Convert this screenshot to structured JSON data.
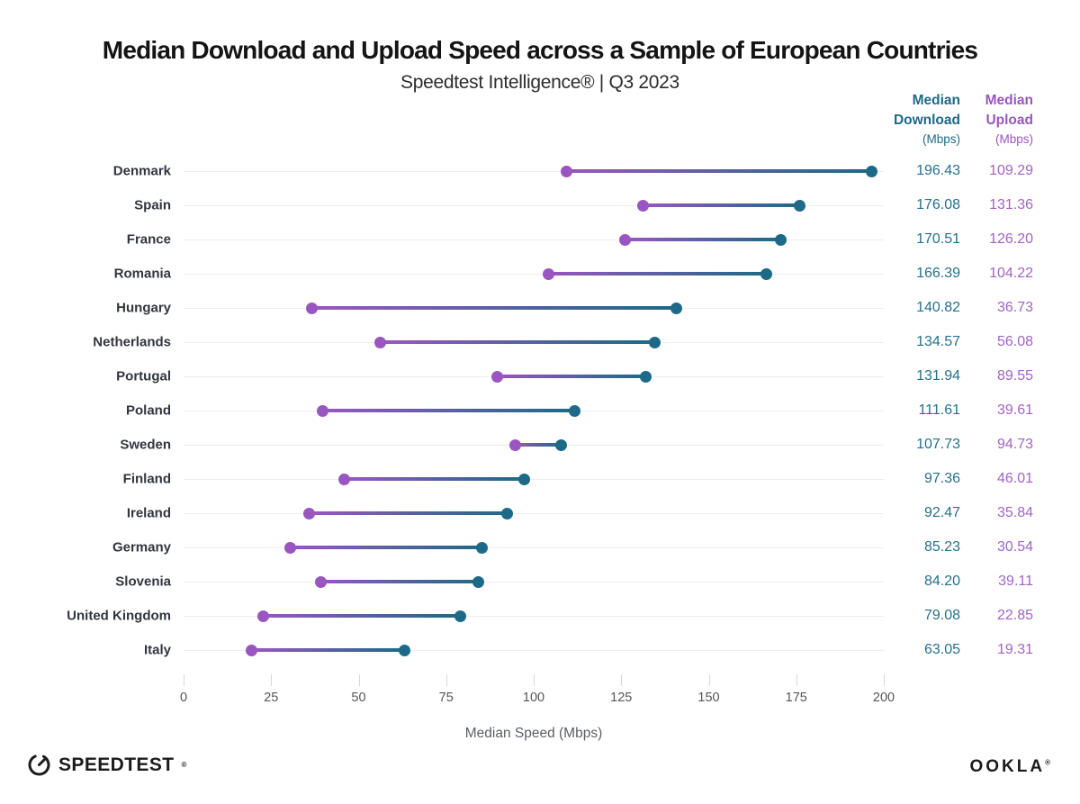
{
  "header": {
    "title": "Median Download and Upload Speed across a Sample of European Countries",
    "subtitle": "Speedtest Intelligence® | Q3 2023",
    "col_download": {
      "line1": "Median",
      "line2": "Download",
      "unit": "(Mbps)"
    },
    "col_upload": {
      "line1": "Median",
      "line2": "Upload",
      "unit": "(Mbps)"
    }
  },
  "chart_data": {
    "type": "dumbbell",
    "title": "Median Download and Upload Speed across a Sample of European Countries",
    "subtitle": "Speedtest Intelligence® | Q3 2023",
    "categories": [
      "Denmark",
      "Spain",
      "France",
      "Romania",
      "Hungary",
      "Netherlands",
      "Portugal",
      "Poland",
      "Sweden",
      "Finland",
      "Ireland",
      "Germany",
      "Slovenia",
      "United Kingdom",
      "Italy"
    ],
    "series": [
      {
        "name": "Median Download (Mbps)",
        "color": "#1c6a87",
        "values": [
          196.43,
          176.08,
          170.51,
          166.39,
          140.82,
          134.57,
          131.94,
          111.61,
          107.73,
          97.36,
          92.47,
          85.23,
          84.2,
          79.08,
          63.05
        ]
      },
      {
        "name": "Median Upload (Mbps)",
        "color": "#9a56c0",
        "values": [
          109.29,
          131.36,
          126.2,
          104.22,
          36.73,
          56.08,
          89.55,
          39.61,
          94.73,
          46.01,
          35.84,
          30.54,
          39.11,
          22.85,
          19.31
        ]
      }
    ],
    "xlabel": "Median Speed (Mbps)",
    "xlim": [
      0,
      200
    ],
    "xticks": [
      0,
      25,
      50,
      75,
      100,
      125,
      150,
      175,
      200
    ],
    "grid": "horizontal-row-lines-only",
    "legend_position": "right-value-columns",
    "value_format": "2-decimals"
  },
  "footer": {
    "speedtest_text": "SPEEDTEST",
    "speedtest_mark": "®",
    "ookla_text": "OOKLA",
    "ookla_mark": "®"
  },
  "colors": {
    "download": "#1c6a87",
    "upload": "#9a56c0",
    "download_value_text": "#24708d",
    "upload_value_text": "#a263c5",
    "title_text": "#141414",
    "country_label_text": "#31353f",
    "gridline": "#ededed",
    "tick_mark": "#d6d6d6",
    "logo_text": "#1b1b1b"
  }
}
